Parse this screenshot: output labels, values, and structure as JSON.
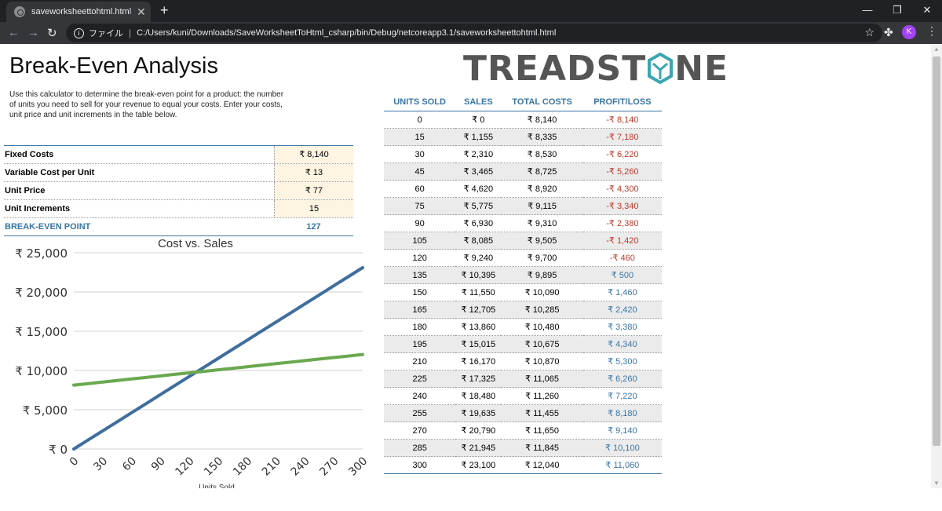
{
  "browser": {
    "tab_title": "saveworksheettohtml.html",
    "file_label": "ファイル",
    "url": "C:/Users/kuni/Downloads/SaveWorksheetToHtml_csharp/bin/Debug/netcoreapp3.1/saveworksheettohtml.html",
    "avatar_letter": "K"
  },
  "page": {
    "title": "Break-Even Analysis",
    "description": "Use this calculator to determine the break-even point for a product: the number of units you need to sell for your revenue to equal your costs. Enter your costs, unit price and unit increments in the table below.",
    "logo_text_a": "TREADST",
    "logo_text_b": "NE"
  },
  "inputs": [
    {
      "label": "Fixed Costs",
      "value": "₹ 8,140"
    },
    {
      "label": "Variable Cost per Unit",
      "value": "₹ 13"
    },
    {
      "label": "Unit Price",
      "value": "₹ 77"
    },
    {
      "label": "Unit Increments",
      "value": "15"
    }
  ],
  "result": {
    "label": "BREAK-EVEN POINT",
    "value": "127"
  },
  "table": {
    "headers": [
      "UNITS SOLD",
      "SALES",
      "TOTAL COSTS",
      "PROFIT/LOSS"
    ],
    "rows": [
      [
        "0",
        "₹ 0",
        "₹ 8,140",
        "-₹ 8,140"
      ],
      [
        "15",
        "₹ 1,155",
        "₹ 8,335",
        "-₹ 7,180"
      ],
      [
        "30",
        "₹ 2,310",
        "₹ 8,530",
        "-₹ 6,220"
      ],
      [
        "45",
        "₹ 3,465",
        "₹ 8,725",
        "-₹ 5,260"
      ],
      [
        "60",
        "₹ 4,620",
        "₹ 8,920",
        "-₹ 4,300"
      ],
      [
        "75",
        "₹ 5,775",
        "₹ 9,115",
        "-₹ 3,340"
      ],
      [
        "90",
        "₹ 6,930",
        "₹ 9,310",
        "-₹ 2,380"
      ],
      [
        "105",
        "₹ 8,085",
        "₹ 9,505",
        "-₹ 1,420"
      ],
      [
        "120",
        "₹ 9,240",
        "₹ 9,700",
        "-₹ 460"
      ],
      [
        "135",
        "₹ 10,395",
        "₹ 9,895",
        "₹ 500"
      ],
      [
        "150",
        "₹ 11,550",
        "₹ 10,090",
        "₹ 1,460"
      ],
      [
        "165",
        "₹ 12,705",
        "₹ 10,285",
        "₹ 2,420"
      ],
      [
        "180",
        "₹ 13,860",
        "₹ 10,480",
        "₹ 3,380"
      ],
      [
        "195",
        "₹ 15,015",
        "₹ 10,675",
        "₹ 4,340"
      ],
      [
        "210",
        "₹ 16,170",
        "₹ 10,870",
        "₹ 5,300"
      ],
      [
        "225",
        "₹ 17,325",
        "₹ 11,065",
        "₹ 6,260"
      ],
      [
        "240",
        "₹ 18,480",
        "₹ 11,260",
        "₹ 7,220"
      ],
      [
        "255",
        "₹ 19,635",
        "₹ 11,455",
        "₹ 8,180"
      ],
      [
        "270",
        "₹ 20,790",
        "₹ 11,650",
        "₹ 9,140"
      ],
      [
        "285",
        "₹ 21,945",
        "₹ 11,845",
        "₹ 10,100"
      ],
      [
        "300",
        "₹ 23,100",
        "₹ 12,040",
        "₹ 11,060"
      ]
    ]
  },
  "colors": {
    "accent": "#3a76a6",
    "negative": "#c0392b",
    "sales_line": "#3f6e9e",
    "cost_line": "#6aa84f",
    "input_fill": "#fdf5e2"
  },
  "chart_data": {
    "type": "line",
    "title": "Cost vs. Sales",
    "xlabel": "Units Sold",
    "ylabel": "",
    "x": [
      0,
      15,
      30,
      45,
      60,
      75,
      90,
      105,
      120,
      135,
      150,
      165,
      180,
      195,
      210,
      225,
      240,
      255,
      270,
      285,
      300
    ],
    "xticks": [
      "0",
      "30",
      "60",
      "90",
      "120",
      "150",
      "180",
      "210",
      "240",
      "270",
      "300"
    ],
    "yticks": [
      "₹ 0",
      "₹ 5,000",
      "₹ 10,000",
      "₹ 15,000",
      "₹ 20,000",
      "₹ 25,000"
    ],
    "ylim": [
      0,
      25000
    ],
    "xlim": [
      0,
      300
    ],
    "grid": true,
    "legend": "none",
    "series": [
      {
        "values": [
          0,
          1155,
          2310,
          3465,
          4620,
          5775,
          6930,
          8085,
          9240,
          10395,
          11550,
          12705,
          13860,
          15015,
          16170,
          17325,
          18480,
          19635,
          20790,
          21945,
          23100
        ],
        "color": "#3f6e9e"
      },
      {
        "values": [
          8140,
          8335,
          8530,
          8725,
          8920,
          9115,
          9310,
          9505,
          9700,
          9895,
          10090,
          10285,
          10480,
          10675,
          10870,
          11065,
          11260,
          11455,
          11650,
          11845,
          12040
        ],
        "color": "#6aa84f"
      }
    ]
  }
}
